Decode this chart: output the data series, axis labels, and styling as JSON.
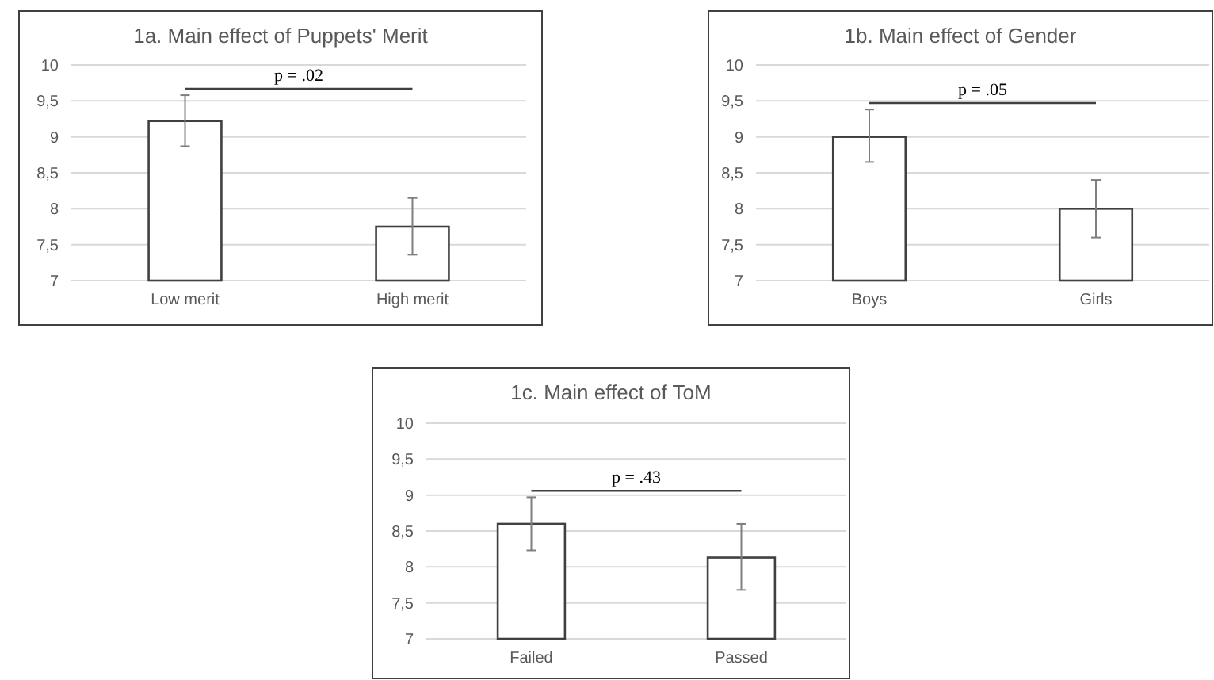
{
  "chart_data": [
    {
      "type": "bar",
      "title": "1a. Main effect of Puppets' Merit",
      "categories": [
        "Low merit",
        "High merit"
      ],
      "values": [
        9.22,
        7.75
      ],
      "errors": [
        [
          8.87,
          9.58
        ],
        [
          7.36,
          8.15
        ]
      ],
      "color": "#ffffff",
      "ylim": [
        7,
        10
      ],
      "yticks": [
        7,
        {
          "value": 7.5,
          "label": "7,5"
        },
        8,
        {
          "value": 8.5,
          "label": "8,5"
        },
        9,
        {
          "value": 9.5,
          "label": "9,5"
        },
        10
      ],
      "grid": "y",
      "annotations": [
        "p = .02"
      ]
    },
    {
      "type": "bar",
      "title": "1b. Main effect of Gender",
      "categories": [
        "Boys",
        "Girls"
      ],
      "values": [
        9.0,
        8.0
      ],
      "errors": [
        [
          8.65,
          9.38
        ],
        [
          7.6,
          8.4
        ]
      ],
      "color": "#ffffff",
      "ylim": [
        7,
        10
      ],
      "yticks": [
        7,
        {
          "value": 7.5,
          "label": "7,5"
        },
        8,
        {
          "value": 8.5,
          "label": "8,5"
        },
        9,
        {
          "value": 9.5,
          "label": "9,5"
        },
        10
      ],
      "grid": "y",
      "annotations": [
        "p = .05"
      ]
    },
    {
      "type": "bar",
      "title": "1c. Main effect of ToM",
      "categories": [
        "Failed",
        "Passed"
      ],
      "values": [
        8.6,
        8.13
      ],
      "errors": [
        [
          8.23,
          8.97
        ],
        [
          7.68,
          8.6
        ]
      ],
      "color": "#ffffff",
      "ylim": [
        7,
        10
      ],
      "yticks": [
        7,
        {
          "value": 7.5,
          "label": "7,5"
        },
        8,
        {
          "value": 8.5,
          "label": "8,5"
        },
        9,
        {
          "value": 9.5,
          "label": "9,5"
        },
        10
      ],
      "grid": "y",
      "annotations": [
        "p = .43"
      ]
    }
  ]
}
